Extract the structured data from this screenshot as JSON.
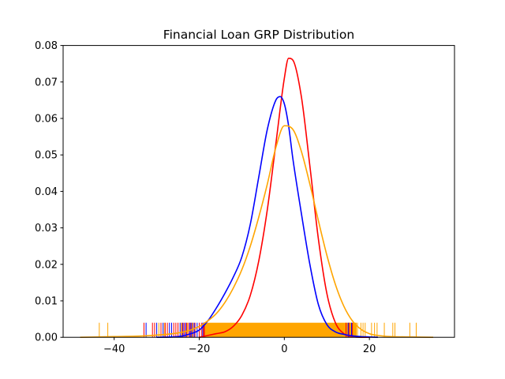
{
  "chart_data": {
    "type": "line",
    "title": "Financial Loan GRP Distribution",
    "xlabel": "",
    "ylabel": "",
    "xlim": [
      -52,
      40
    ],
    "ylim": [
      0,
      0.08
    ],
    "x_ticks": [
      -40,
      -20,
      0,
      20
    ],
    "y_ticks": [
      0.0,
      0.01,
      0.02,
      0.03,
      0.04,
      0.05,
      0.06,
      0.07,
      0.08
    ],
    "x_tick_labels": [
      "−40",
      "−20",
      "0",
      "20"
    ],
    "y_tick_labels": [
      "0.00",
      "0.01",
      "0.02",
      "0.03",
      "0.04",
      "0.05",
      "0.06",
      "0.07",
      "0.08"
    ],
    "grid": false,
    "legend": "none",
    "series": [
      {
        "color": "#ff0000",
        "kind": "kde",
        "x": [
          -20,
          -18,
          -16,
          -14,
          -12,
          -10,
          -8,
          -6,
          -4,
          -2,
          0,
          1,
          2,
          4,
          6,
          8,
          10,
          12,
          14,
          16,
          18,
          20
        ],
        "y": [
          0.0,
          0.0005,
          0.001,
          0.0015,
          0.003,
          0.006,
          0.0115,
          0.021,
          0.035,
          0.053,
          0.071,
          0.0765,
          0.076,
          0.066,
          0.047,
          0.027,
          0.012,
          0.004,
          0.001,
          0.0002,
          0.0,
          0.0
        ]
      },
      {
        "color": "#0000ff",
        "kind": "kde",
        "x": [
          -30,
          -25,
          -22,
          -20,
          -18,
          -16,
          -14,
          -12,
          -10,
          -8,
          -6,
          -4,
          -2,
          -1,
          0,
          1,
          2,
          4,
          6,
          8,
          10,
          12,
          14,
          16,
          18,
          20,
          22
        ],
        "y": [
          0.0,
          0.0002,
          0.001,
          0.002,
          0.0045,
          0.008,
          0.012,
          0.0165,
          0.022,
          0.031,
          0.044,
          0.057,
          0.065,
          0.066,
          0.064,
          0.058,
          0.049,
          0.034,
          0.02,
          0.009,
          0.0035,
          0.0015,
          0.0008,
          0.0004,
          0.0002,
          0.0001,
          0.0
        ]
      },
      {
        "color": "#ffa500",
        "kind": "kde",
        "x": [
          -48,
          -40,
          -35,
          -30,
          -25,
          -22,
          -20,
          -18,
          -16,
          -14,
          -12,
          -10,
          -8,
          -6,
          -4,
          -2,
          0,
          2,
          4,
          6,
          8,
          10,
          12,
          14,
          16,
          18,
          20,
          22,
          25,
          30,
          35
        ],
        "y": [
          0.0,
          0.0002,
          0.0003,
          0.0006,
          0.0012,
          0.002,
          0.003,
          0.0045,
          0.0065,
          0.0095,
          0.0135,
          0.0185,
          0.025,
          0.033,
          0.042,
          0.052,
          0.058,
          0.057,
          0.051,
          0.042,
          0.032,
          0.0225,
          0.0145,
          0.0085,
          0.0045,
          0.0022,
          0.001,
          0.0005,
          0.0002,
          0.0001,
          0.0
        ]
      }
    ],
    "rug": {
      "height": 0.004,
      "red": [
        -33,
        -31,
        -30.5,
        -29,
        -28,
        -27.5,
        -26,
        -25.5,
        -25,
        -24,
        -23.5,
        -23,
        -22.5,
        -22,
        -21.5,
        -21,
        -20,
        -19.5,
        -19,
        -18.8,
        14.5,
        15.2,
        16
      ],
      "blue": [
        -32.5,
        -30,
        -28.5,
        -27,
        -26.5,
        -24.5,
        -23.8,
        -23.2,
        -22.2,
        -21.8,
        -21.2,
        -20.5,
        -19.2,
        15,
        15.8
      ],
      "orange": [
        -43.5,
        -41.5,
        -29.5,
        -28.2,
        -24.2,
        -22.8,
        -21.6,
        15.5,
        16.5,
        17.2,
        18,
        18.5,
        19,
        20.5,
        21.2,
        21.8,
        23.5,
        25.5,
        26,
        29.5,
        31
      ],
      "dense_band": [
        -19,
        17
      ]
    }
  }
}
